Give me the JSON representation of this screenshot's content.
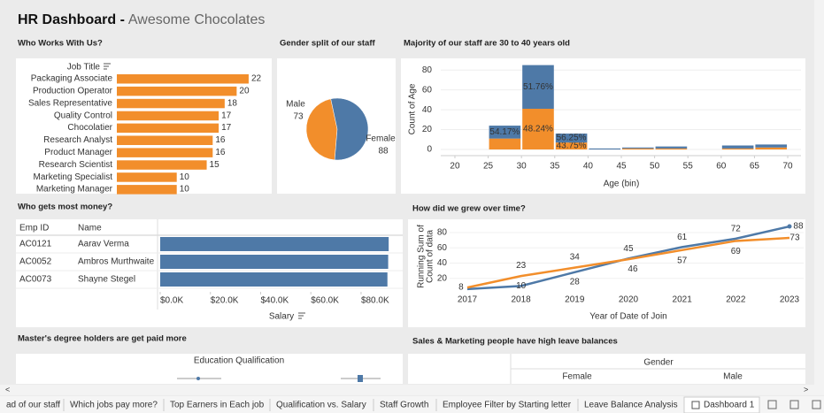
{
  "header": {
    "title": "HR Dashboard -",
    "subtitle": "Awesome Chocolates"
  },
  "chart_data": [
    {
      "type": "bar",
      "title": "Who Works With Us?",
      "axis_label": "Job Title",
      "categories": [
        "Packaging Associate",
        "Production Operator",
        "Sales Representative",
        "Quality Control",
        "Chocolatier",
        "Research Analyst",
        "Product Manager",
        "Research Scientist",
        "Marketing Specialist",
        "Marketing Manager"
      ],
      "values": [
        22,
        20,
        18,
        17,
        17,
        16,
        16,
        15,
        10,
        10
      ],
      "color": "#f28e2b"
    },
    {
      "type": "pie",
      "title": "Gender split of our staff",
      "categories": [
        "Male",
        "Female"
      ],
      "values": [
        73,
        88
      ],
      "colors": [
        "#f28e2b",
        "#4e79a7"
      ]
    },
    {
      "type": "histogram",
      "title": "Majority of our staff are 30 to 40 years old",
      "y_label": "Count of Age",
      "x_label": "Age (bin)",
      "bins": [
        20,
        25,
        30,
        35,
        40,
        45,
        50,
        55,
        60,
        65,
        70
      ],
      "series": [
        {
          "color": "#f28e2b",
          "values": [
            0,
            11,
            41,
            7,
            0,
            1,
            1,
            0,
            1,
            2
          ],
          "percent_labels": [
            null,
            null,
            "48.24%",
            "43.75%",
            null,
            null,
            null,
            null,
            null,
            null
          ]
        },
        {
          "color": "#4e79a7",
          "values": [
            0,
            13,
            44,
            9,
            1,
            1,
            2,
            0,
            3,
            3
          ],
          "percent_labels": [
            null,
            "54.17%",
            "51.76%",
            "56.25%",
            null,
            null,
            null,
            null,
            null,
            null
          ]
        }
      ],
      "xlim": [
        17,
        73
      ],
      "xticks": [
        20,
        25,
        30,
        35,
        40,
        45,
        50,
        55,
        60,
        65,
        70
      ],
      "ylim": [
        0,
        90
      ],
      "yticks": [
        0,
        20,
        40,
        60,
        80
      ],
      "grid": true
    },
    {
      "type": "table-bar",
      "title": "Who gets most money?",
      "columns": [
        "Emp ID",
        "Name"
      ],
      "categories": [
        "AC0121",
        "AC0052",
        "AC0073"
      ],
      "names": [
        "Aarav Verma",
        "Ambros Murthwaite",
        "Shayne Stegel"
      ],
      "values": [
        91000,
        90800,
        90500
      ],
      "color": "#4e79a7",
      "x_label": "Salary",
      "xlim": [
        0,
        95000
      ],
      "xticks": [
        {
          "value": 0,
          "label": "$0.0K"
        },
        {
          "value": 20000,
          "label": "$20.0K"
        },
        {
          "value": 40000,
          "label": "$40.0K"
        },
        {
          "value": 60000,
          "label": "$60.0K"
        },
        {
          "value": 80000,
          "label": "$80.0K"
        }
      ]
    },
    {
      "type": "line",
      "title": "How did we grew over time?",
      "x_label": "Year of Date of Join",
      "y_label": [
        "Running Sum of",
        "Count of data"
      ],
      "x": [
        2017,
        2018,
        2019,
        2020,
        2021,
        2022,
        2023
      ],
      "xlim": [
        2016.6,
        2023.3
      ],
      "xticks": [
        2017,
        2018,
        2019,
        2020,
        2021,
        2022,
        2023
      ],
      "ylim": [
        0,
        95
      ],
      "yticks": [
        20,
        40,
        60,
        80
      ],
      "grid": true,
      "series": [
        {
          "color": "#4e79a7",
          "values": [
            6,
            10,
            28,
            46,
            61,
            72,
            88
          ],
          "value_labels": [
            null,
            "10",
            "28",
            "46",
            "61",
            "72",
            "88"
          ]
        },
        {
          "color": "#f28e2b",
          "values": [
            8,
            23,
            34,
            45,
            57,
            69,
            73
          ]
        }
      ]
    }
  ],
  "sections": [
    {
      "title": "Master's degree holders are get paid more",
      "header": "Education Qualification"
    },
    {
      "title": "Sales & Marketing people have high leave balances",
      "header": "Gender",
      "columns": [
        "Female",
        "Male"
      ]
    }
  ],
  "tabs": [
    "ad of our staff",
    "Which jobs pay more?",
    "Top Earners in Each job",
    "Qualification vs. Salary",
    "Staff Growth",
    "Employee Filter by Starting letter",
    "Leave Balance Analysis",
    "Dashboard 1"
  ],
  "active_tab": 7
}
